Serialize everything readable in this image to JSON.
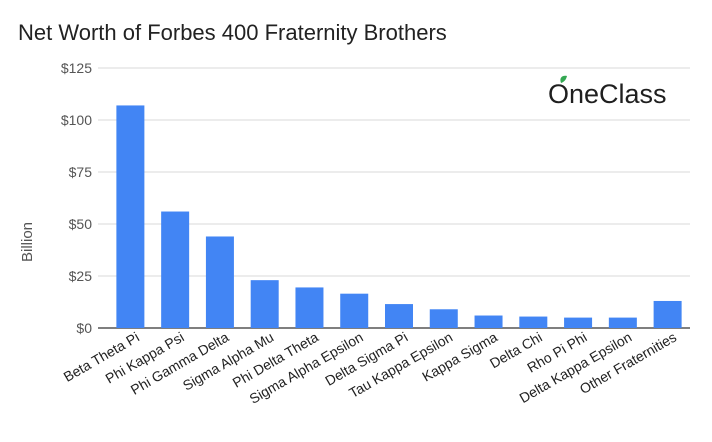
{
  "chart_data": {
    "type": "bar",
    "title": "Net Worth of Forbes 400 Fraternity Brothers",
    "xlabel": "",
    "ylabel": "Billion",
    "categories": [
      "Beta Theta Pi",
      "Phi Kappa Psi",
      "Phi Gamma Delta",
      "Sigma Alpha Mu",
      "Phi Delta Theta",
      "Sigma Alpha Epsilon",
      "Delta Sigma Pi",
      "Tau Kappa Epsilon",
      "Kappa Sigma",
      "Delta Chi",
      "Rho Pi Phi",
      "Delta Kappa Epsilon",
      "Other Fraternities"
    ],
    "values": [
      107,
      56,
      44,
      23,
      19.5,
      16.5,
      11.5,
      9,
      6,
      5.5,
      5,
      5,
      13
    ],
    "yticks": [
      "$0",
      "$25",
      "$50",
      "$75",
      "$100",
      "$125"
    ],
    "ytick_values": [
      0,
      25,
      50,
      75,
      100,
      125
    ],
    "ylim": [
      0,
      125
    ],
    "grid": true,
    "bar_color": "#4285F4"
  },
  "logo": {
    "text": "OneClass",
    "accent_color": "#34A853"
  }
}
